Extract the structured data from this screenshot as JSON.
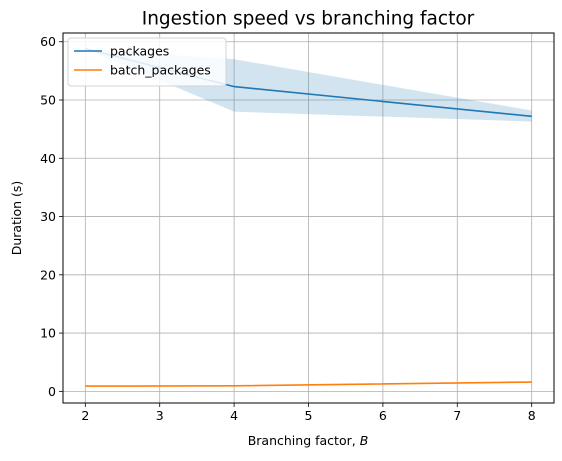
{
  "chart_data": {
    "type": "line",
    "title": "Ingestion speed vs branching factor",
    "xlabel": "Branching factor, ",
    "xlabel_var": "B",
    "ylabel": "Duration (s)",
    "xlim": [
      1.7,
      8.3
    ],
    "ylim": [
      -2.0,
      61.5
    ],
    "xticks": [
      2,
      3,
      4,
      5,
      6,
      7,
      8
    ],
    "yticks": [
      0,
      10,
      20,
      30,
      40,
      50,
      60
    ],
    "grid": true,
    "legend_position": "top-left",
    "series": [
      {
        "name": "packages",
        "color": "#1f77b4",
        "x": [
          2,
          4,
          8
        ],
        "y": [
          58.8,
          52.3,
          47.2
        ],
        "band": {
          "lower": [
            58.8,
            48.0,
            46.3
          ],
          "upper": [
            58.8,
            57.0,
            48.2
          ],
          "color": "#1f77b4",
          "opacity": 0.2
        }
      },
      {
        "name": "batch_packages",
        "color": "#ff7f0e",
        "x": [
          2,
          4,
          8
        ],
        "y": [
          0.9,
          0.95,
          1.6
        ]
      }
    ]
  }
}
